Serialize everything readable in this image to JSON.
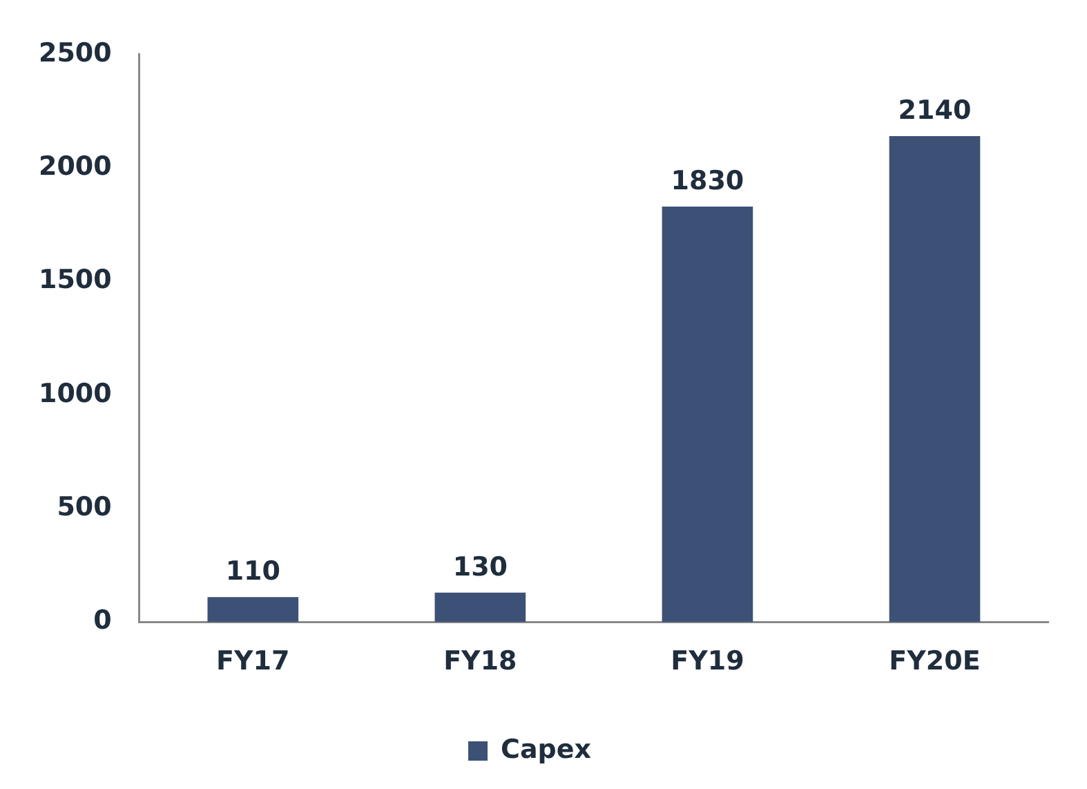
{
  "chart_data": {
    "type": "bar",
    "categories": [
      "FY17",
      "FY18",
      "FY19",
      "FY20E"
    ],
    "series": [
      {
        "name": "Capex",
        "color": "#3d5176",
        "values": [
          110,
          130,
          1830,
          2140
        ]
      }
    ],
    "ylim": [
      0,
      2500
    ],
    "yticks": [
      0,
      500,
      1000,
      1500,
      2000,
      2500
    ],
    "grid": false,
    "legend": "bottom",
    "data_labels": true
  }
}
